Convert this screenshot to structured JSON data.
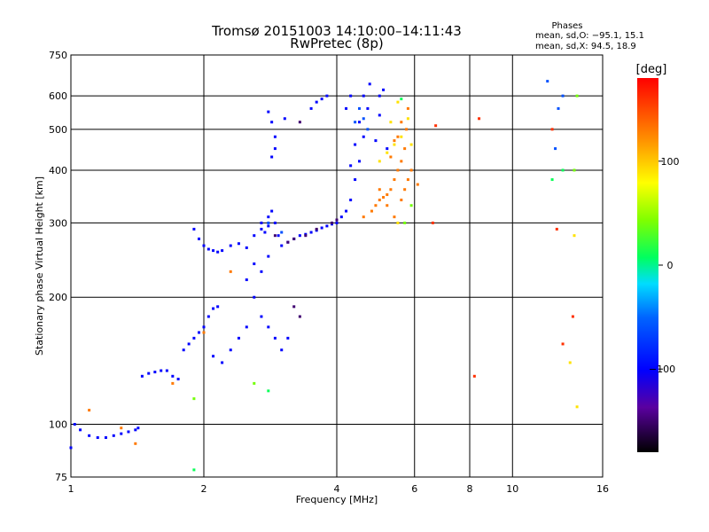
{
  "chart_data": {
    "type": "scatter",
    "title": "Tromsø 20151003 14:10:00–14:11:43",
    "subtitle": "RwPretec (8p)",
    "xlabel": "Frequency [MHz]",
    "ylabel": "Stationary phase Virtual Height [km]",
    "x_scale": "log",
    "y_scale": "log",
    "xlim": [
      1,
      16
    ],
    "ylim": [
      75,
      750
    ],
    "x_ticks": [
      1,
      2,
      4,
      6,
      8,
      10,
      16
    ],
    "y_ticks": [
      75,
      100,
      200,
      300,
      400,
      500,
      600,
      750
    ],
    "grid": true,
    "stats": {
      "heading": "Phases",
      "line_o": "mean, sd,O: −95.1, 15.1",
      "line_x": "mean, sd,X:  94.5, 18.9"
    },
    "colorbar": {
      "label": "[deg]",
      "ticks": [
        100,
        0,
        -100
      ],
      "range": [
        -180,
        180
      ]
    },
    "series": [
      {
        "phase": -100,
        "points": [
          [
            1.0,
            88
          ],
          [
            1.02,
            100
          ],
          [
            1.05,
            97
          ],
          [
            1.1,
            94
          ],
          [
            1.15,
            93
          ],
          [
            1.2,
            93
          ],
          [
            1.25,
            94
          ],
          [
            1.3,
            95
          ],
          [
            1.35,
            96
          ],
          [
            1.4,
            97
          ],
          [
            1.42,
            98
          ],
          [
            1.45,
            130
          ],
          [
            1.5,
            132
          ],
          [
            1.55,
            133
          ],
          [
            1.6,
            134
          ],
          [
            1.65,
            134
          ],
          [
            1.7,
            130
          ],
          [
            1.75,
            128
          ],
          [
            1.8,
            150
          ],
          [
            1.85,
            155
          ],
          [
            1.9,
            160
          ],
          [
            1.95,
            165
          ],
          [
            2.0,
            170
          ],
          [
            2.05,
            180
          ],
          [
            2.1,
            188
          ],
          [
            2.15,
            190
          ],
          [
            1.9,
            290
          ],
          [
            1.95,
            275
          ],
          [
            2.0,
            265
          ],
          [
            2.05,
            260
          ],
          [
            2.1,
            258
          ],
          [
            2.15,
            256
          ],
          [
            2.2,
            258
          ],
          [
            2.3,
            265
          ],
          [
            2.4,
            268
          ],
          [
            2.5,
            262
          ],
          [
            2.6,
            280
          ],
          [
            2.7,
            300
          ],
          [
            2.8,
            310
          ],
          [
            2.85,
            320
          ],
          [
            2.9,
            300
          ],
          [
            2.95,
            280
          ],
          [
            3.0,
            265
          ],
          [
            3.1,
            270
          ],
          [
            3.2,
            275
          ],
          [
            3.3,
            280
          ],
          [
            3.4,
            282
          ],
          [
            3.5,
            285
          ],
          [
            3.6,
            288
          ],
          [
            3.7,
            292
          ],
          [
            3.8,
            295
          ],
          [
            3.9,
            298
          ],
          [
            4.0,
            300
          ],
          [
            4.1,
            310
          ],
          [
            4.2,
            320
          ],
          [
            4.3,
            340
          ],
          [
            4.4,
            380
          ],
          [
            4.5,
            420
          ],
          [
            4.6,
            480
          ],
          [
            4.7,
            560
          ],
          [
            4.75,
            640
          ],
          [
            4.6,
            600
          ],
          [
            4.5,
            520
          ],
          [
            4.4,
            460
          ],
          [
            4.3,
            410
          ],
          [
            2.6,
            200
          ],
          [
            2.7,
            180
          ],
          [
            2.8,
            170
          ],
          [
            2.9,
            160
          ],
          [
            3.0,
            150
          ],
          [
            3.1,
            160
          ],
          [
            2.5,
            220
          ],
          [
            2.6,
            240
          ],
          [
            2.7,
            230
          ],
          [
            2.8,
            250
          ],
          [
            2.3,
            150
          ],
          [
            2.4,
            160
          ],
          [
            2.5,
            170
          ],
          [
            2.2,
            140
          ],
          [
            2.1,
            145
          ],
          [
            2.8,
            550
          ],
          [
            2.85,
            520
          ],
          [
            2.9,
            480
          ],
          [
            2.9,
            450
          ],
          [
            2.85,
            430
          ],
          [
            3.5,
            560
          ],
          [
            3.6,
            580
          ],
          [
            3.7,
            590
          ],
          [
            3.8,
            600
          ],
          [
            4.2,
            560
          ],
          [
            4.3,
            600
          ],
          [
            5.0,
            600
          ],
          [
            5.1,
            620
          ],
          [
            5.0,
            540
          ],
          [
            4.9,
            470
          ],
          [
            5.2,
            450
          ],
          [
            2.7,
            290
          ],
          [
            2.8,
            295
          ],
          [
            2.75,
            285
          ],
          [
            3.05,
            530
          ]
        ]
      },
      {
        "phase": -150,
        "points": [
          [
            3.2,
            275
          ],
          [
            3.4,
            280
          ],
          [
            3.6,
            290
          ],
          [
            2.9,
            280
          ],
          [
            3.1,
            270
          ],
          [
            3.3,
            180
          ],
          [
            3.2,
            190
          ],
          [
            3.3,
            520
          ],
          [
            3.9,
            300
          ],
          [
            4.0,
            305
          ]
        ]
      },
      {
        "phase": -60,
        "points": [
          [
            2.8,
            300
          ],
          [
            3.0,
            285
          ],
          [
            4.4,
            520
          ],
          [
            4.5,
            560
          ],
          [
            4.6,
            530
          ],
          [
            4.7,
            500
          ],
          [
            12.0,
            650
          ],
          [
            13.0,
            600
          ],
          [
            12.5,
            450
          ],
          [
            12.7,
            560
          ]
        ]
      },
      {
        "phase": 130,
        "points": [
          [
            4.8,
            320
          ],
          [
            4.9,
            330
          ],
          [
            5.0,
            340
          ],
          [
            5.1,
            345
          ],
          [
            5.2,
            350
          ],
          [
            5.3,
            360
          ],
          [
            5.4,
            380
          ],
          [
            5.5,
            400
          ],
          [
            5.6,
            420
          ],
          [
            5.7,
            450
          ],
          [
            5.75,
            500
          ],
          [
            5.8,
            560
          ],
          [
            5.6,
            520
          ],
          [
            5.4,
            470
          ],
          [
            5.3,
            430
          ],
          [
            5.5,
            480
          ],
          [
            5.7,
            360
          ],
          [
            5.8,
            380
          ],
          [
            5.9,
            400
          ],
          [
            5.2,
            330
          ],
          [
            5.4,
            310
          ],
          [
            4.6,
            310
          ],
          [
            5.0,
            360
          ],
          [
            5.6,
            340
          ],
          [
            6.1,
            370
          ],
          [
            1.1,
            108
          ],
          [
            1.3,
            98
          ],
          [
            1.4,
            90
          ],
          [
            1.7,
            125
          ],
          [
            2.3,
            230
          ],
          [
            2.0,
            165
          ]
        ]
      },
      {
        "phase": 90,
        "points": [
          [
            5.0,
            420
          ],
          [
            5.2,
            440
          ],
          [
            5.4,
            460
          ],
          [
            5.6,
            480
          ],
          [
            5.8,
            530
          ],
          [
            5.5,
            580
          ],
          [
            5.3,
            520
          ],
          [
            5.9,
            460
          ],
          [
            5.5,
            300
          ],
          [
            14.0,
            110
          ],
          [
            13.8,
            280
          ],
          [
            13.5,
            140
          ]
        ]
      },
      {
        "phase": 160,
        "points": [
          [
            6.7,
            510
          ],
          [
            8.4,
            530
          ],
          [
            6.6,
            300
          ],
          [
            8.2,
            130
          ],
          [
            12.3,
            500
          ],
          [
            13.7,
            180
          ],
          [
            13.0,
            155
          ],
          [
            12.6,
            290
          ]
        ]
      },
      {
        "phase": 40,
        "points": [
          [
            5.7,
            300
          ],
          [
            5.9,
            330
          ],
          [
            14.0,
            600
          ],
          [
            13.8,
            400
          ],
          [
            1.9,
            115
          ],
          [
            2.6,
            125
          ]
        ]
      },
      {
        "phase": 10,
        "points": [
          [
            2.8,
            120
          ],
          [
            1.9,
            78
          ],
          [
            12.3,
            380
          ],
          [
            13.0,
            400
          ],
          [
            5.6,
            590
          ]
        ]
      }
    ]
  }
}
